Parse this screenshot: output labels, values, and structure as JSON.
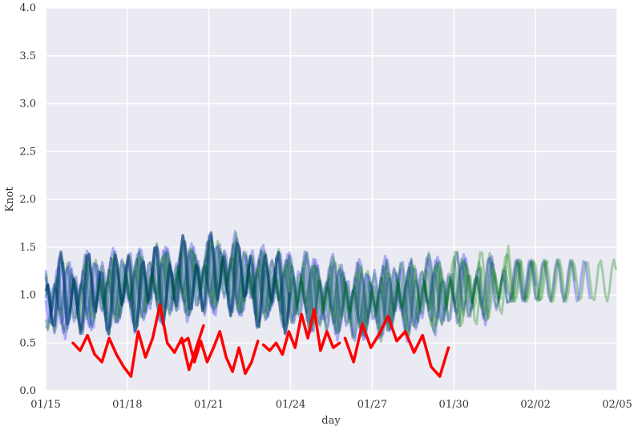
{
  "chart_data": {
    "type": "line",
    "title": "",
    "xlabel": "day",
    "ylabel": "Knot",
    "xlim": [
      "01/15",
      "02/05"
    ],
    "ylim": [
      0,
      4.0
    ],
    "x_ticks": [
      "01/15",
      "01/18",
      "01/21",
      "01/24",
      "01/27",
      "01/30",
      "02/02",
      "02/05"
    ],
    "y_ticks": [
      "0.0",
      "0.5",
      "1.0",
      "1.5",
      "2.0",
      "2.5",
      "3.0",
      "3.5",
      "4.0"
    ],
    "grid": true,
    "legend": "none",
    "colors": {
      "background": "#EAEAF2",
      "grid": "#FFFFFF",
      "observed": "#FF0000",
      "blue_ensemble": "#0000FF",
      "green_ensemble": "#008000"
    },
    "x_units": "day of year 2000s, ticks every 3 days starting 01/15",
    "series": [
      {
        "color": "#FF0000",
        "opacity": 1.0,
        "width": 3.5,
        "segments": [
          {
            "x": [
              "01/16",
              "01/16",
              "01/16",
              "01/17",
              "01/17",
              "01/17",
              "01/17",
              "01/17",
              "01/17",
              "01/18",
              "01/18",
              "01/18",
              "01/18",
              "01/18",
              "01/19",
              "01/19",
              "01/19",
              "01/19",
              "01/20"
            ],
            "y": [
              0.5,
              0.42,
              0.58,
              0.38,
              0.3,
              0.55,
              0.38,
              0.25,
              0.15,
              0.62,
              0.35,
              0.55,
              0.9,
              0.5,
              0.4,
              0.55,
              0.22,
              0.45,
              0.68
            ]
          },
          {
            "x": [
              "01/20",
              "01/20",
              "01/21",
              "01/21",
              "01/21",
              "01/21",
              "01/21",
              "01/22",
              "01/22",
              "01/22",
              "01/22",
              "01/22",
              "01/22"
            ],
            "y": [
              0.5,
              0.55,
              0.3,
              0.52,
              0.3,
              0.45,
              0.62,
              0.35,
              0.2,
              0.45,
              0.18,
              0.3,
              0.52
            ]
          },
          {
            "x": [
              "01/23",
              "01/23",
              "01/23",
              "01/23",
              "01/23",
              "01/24",
              "01/24",
              "01/24",
              "01/24",
              "01/25",
              "01/25",
              "01/25",
              "01/25"
            ],
            "y": [
              0.48,
              0.42,
              0.5,
              0.38,
              0.62,
              0.45,
              0.8,
              0.55,
              0.85,
              0.42,
              0.62,
              0.45,
              0.5
            ]
          },
          {
            "x": [
              "01/26",
              "01/26",
              "01/26",
              "01/27",
              "01/27",
              "01/27",
              "01/27",
              "01/28",
              "01/28",
              "01/28",
              "01/28",
              "01/28",
              "01/29"
            ],
            "y": [
              0.55,
              0.3,
              0.7,
              0.45,
              0.6,
              0.78,
              0.52,
              0.62,
              0.4,
              0.58,
              0.25,
              0.15,
              0.45
            ]
          }
        ]
      }
    ]
  }
}
